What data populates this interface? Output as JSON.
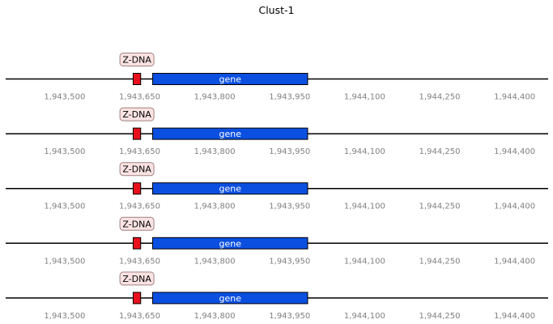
{
  "title": "Clust-1",
  "xaxis": {
    "min": 1943382,
    "max": 1944467,
    "ticks": [
      1943500,
      1943650,
      1943800,
      1943950,
      1944100,
      1944250,
      1944400
    ],
    "tick_labels": [
      "1,943,500",
      "1,943,650",
      "1,943,800",
      "1,943,950",
      "1,944,100",
      "1,944,250",
      "1,944,400"
    ]
  },
  "colors": {
    "backbone": "#000000",
    "zdna_fill": "#e8101c",
    "zdna_label_bg": "#fbe3e3",
    "zdna_label_border": "#a08080",
    "gene_fill": "#0a4fe0",
    "gene_text": "#ffffff",
    "tick_label": "#808080"
  },
  "tracks": [
    {
      "features": [
        {
          "type": "zdna",
          "label": "Z-DNA",
          "start": 1943637,
          "end": 1943652
        },
        {
          "type": "gene",
          "label": "gene",
          "start": 1943676,
          "end": 1943986
        }
      ]
    },
    {
      "features": [
        {
          "type": "zdna",
          "label": "Z-DNA",
          "start": 1943637,
          "end": 1943652
        },
        {
          "type": "gene",
          "label": "gene",
          "start": 1943676,
          "end": 1943986
        }
      ]
    },
    {
      "features": [
        {
          "type": "zdna",
          "label": "Z-DNA",
          "start": 1943637,
          "end": 1943652
        },
        {
          "type": "gene",
          "label": "gene",
          "start": 1943676,
          "end": 1943986
        }
      ]
    },
    {
      "features": [
        {
          "type": "zdna",
          "label": "Z-DNA",
          "start": 1943637,
          "end": 1943652
        },
        {
          "type": "gene",
          "label": "gene",
          "start": 1943676,
          "end": 1943986
        }
      ]
    },
    {
      "features": [
        {
          "type": "zdna",
          "label": "Z-DNA",
          "start": 1943637,
          "end": 1943652
        },
        {
          "type": "gene",
          "label": "gene",
          "start": 1943676,
          "end": 1943986
        }
      ]
    }
  ]
}
